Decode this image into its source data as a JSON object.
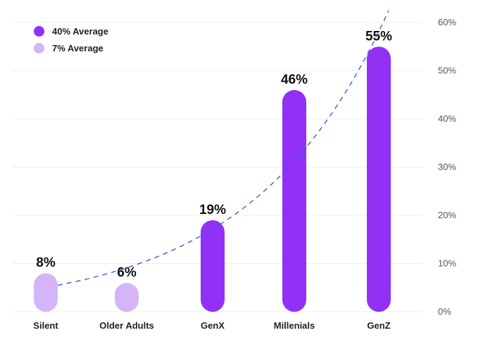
{
  "chart_data": {
    "type": "bar",
    "categories": [
      "Silent",
      "Older Adults",
      "GenX",
      "Millenials",
      "GenZ"
    ],
    "values": [
      8,
      6,
      19,
      46,
      55
    ],
    "data_labels": [
      "8%",
      "6%",
      "19%",
      "46%",
      "55%"
    ],
    "bar_groups": [
      "7% Average",
      "7% Average",
      "40% Average",
      "40% Average",
      "40% Average"
    ],
    "legend": [
      {
        "label": "40% Average",
        "color": "#9131f5"
      },
      {
        "label": "7% Average",
        "color": "#d4b5f9"
      }
    ],
    "y_ticks": [
      "0%",
      "10%",
      "20%",
      "30%",
      "40%",
      "50%",
      "60%"
    ],
    "y_tick_values": [
      0,
      10,
      20,
      30,
      40,
      50,
      60
    ],
    "ylim": [
      0,
      60
    ],
    "axis_position": "right",
    "grid": true,
    "legend_position": "top-left",
    "trendline": {
      "style": "dashed",
      "color": "#3a5fd6"
    }
  }
}
